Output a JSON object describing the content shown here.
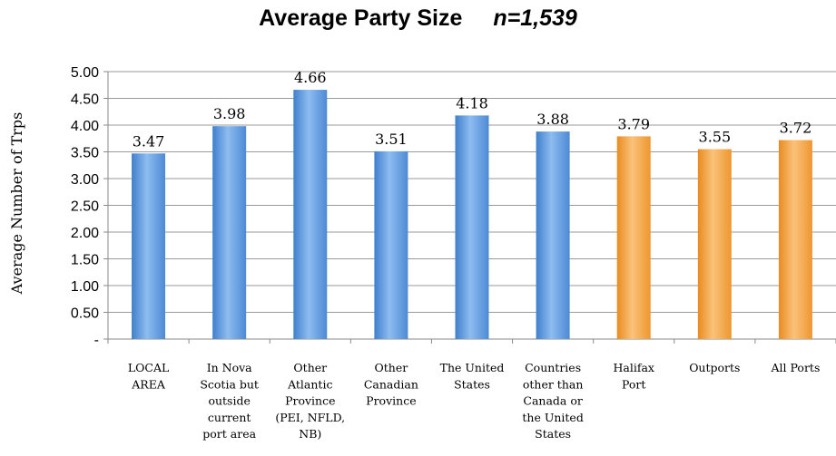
{
  "chart_data": {
    "type": "bar",
    "title": "Average Party Size",
    "subtitle": "n=1,539",
    "ylabel": "Average Number of Trps",
    "ylim": [
      0,
      5
    ],
    "yticks": [
      "-",
      "0.50",
      "1.00",
      "1.50",
      "2.00",
      "2.50",
      "3.00",
      "3.50",
      "4.00",
      "4.50",
      "5.00"
    ],
    "grid": true,
    "categories": [
      [
        "LOCAL",
        "AREA"
      ],
      [
        "In Nova",
        "Scotia but",
        "outside",
        "current",
        "port area"
      ],
      [
        "Other",
        "Atlantic",
        "Province",
        "(PEI, NFLD,",
        "NB)"
      ],
      [
        "Other",
        "Canadian",
        "Province"
      ],
      [
        "The United",
        "States"
      ],
      [
        "Countries",
        "other than",
        "Canada or",
        "the United",
        "States"
      ],
      [
        "Halifax",
        "Port"
      ],
      [
        "Outports"
      ],
      [
        "All Ports"
      ]
    ],
    "values": [
      3.47,
      3.98,
      4.66,
      3.51,
      4.18,
      3.88,
      3.79,
      3.55,
      3.72
    ],
    "value_labels": [
      "3.47",
      "3.98",
      "4.66",
      "3.51",
      "4.18",
      "3.88",
      "3.79",
      "3.55",
      "3.72"
    ],
    "bar_colors": [
      "#6ea6e4",
      "#6ea6e4",
      "#6ea6e4",
      "#6ea6e4",
      "#6ea6e4",
      "#6ea6e4",
      "#f5a94a",
      "#f5a94a",
      "#f5a94a"
    ]
  }
}
